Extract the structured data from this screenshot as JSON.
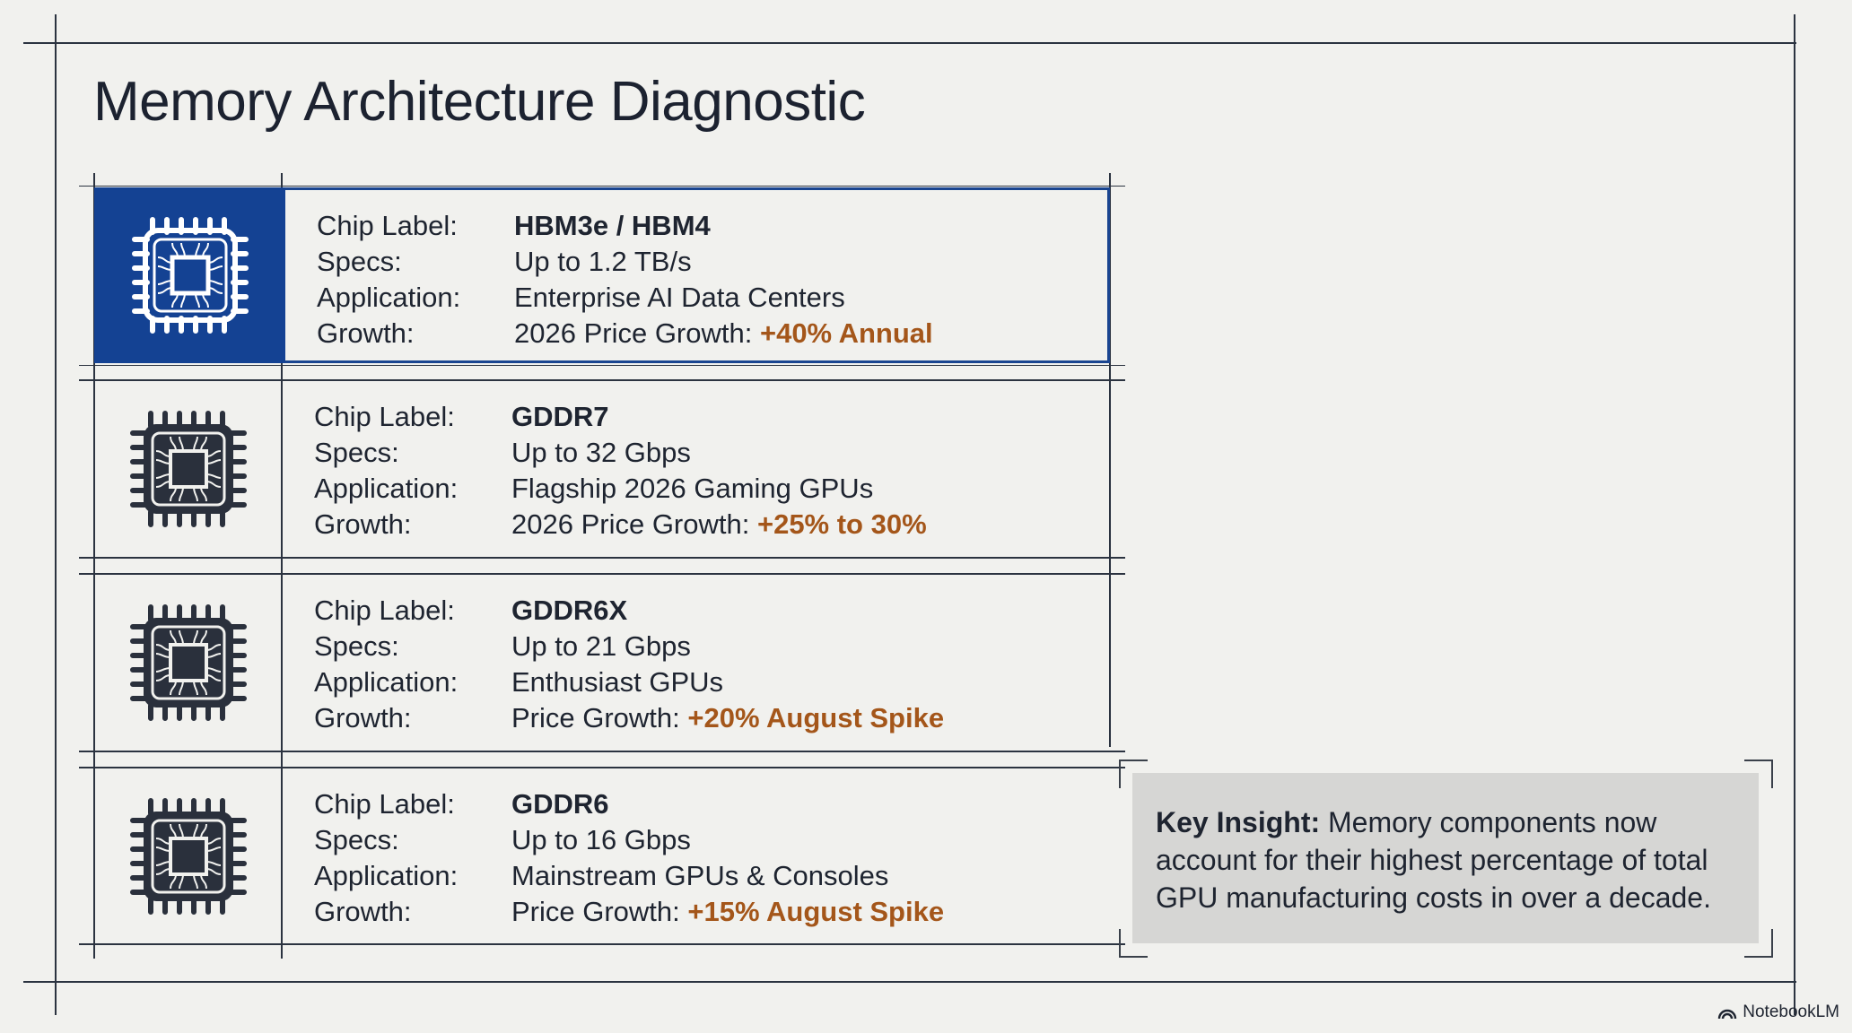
{
  "title": "Memory Architecture Diagnostic",
  "labels": {
    "chip_label": "Chip Label:",
    "specs": "Specs:",
    "application": "Application:",
    "growth": "Growth:"
  },
  "rows": [
    {
      "chip": "HBM3e / HBM4",
      "specs": "Up to 1.2 TB/s",
      "application": "Enterprise AI Data Centers",
      "growth_prefix": "2026 Price Growth: ",
      "growth_highlight": "+40% Annual",
      "highlighted": true,
      "icon": "chip-icon"
    },
    {
      "chip": "GDDR7",
      "specs": "Up to 32 Gbps",
      "application": "Flagship 2026 Gaming GPUs",
      "growth_prefix": "2026 Price Growth: ",
      "growth_highlight": "+25% to 30%",
      "highlighted": false,
      "icon": "chip-icon"
    },
    {
      "chip": "GDDR6X",
      "specs": "Up to 21 Gbps",
      "application": "Enthusiast GPUs",
      "growth_prefix": "Price Growth: ",
      "growth_highlight": "+20% August Spike",
      "highlighted": false,
      "icon": "chip-icon"
    },
    {
      "chip": "GDDR6",
      "specs": "Up to 16 Gbps",
      "application": "Mainstream GPUs & Consoles",
      "growth_prefix": "Price Growth: ",
      "growth_highlight": "+15% August Spike",
      "highlighted": false,
      "icon": "chip-icon"
    }
  ],
  "insight": {
    "label": "Key Insight:",
    "text": " Memory components now account for their highest percentage of total GPU manufacturing costs in over a decade."
  },
  "footer": {
    "brand": "NotebookLM",
    "icon": "notebooklm-logo-icon"
  },
  "colors": {
    "accent_blue": "#144293",
    "highlight_orange": "#a4561a",
    "background": "#f1f1ee",
    "insight_bg": "#d6d6d4"
  }
}
